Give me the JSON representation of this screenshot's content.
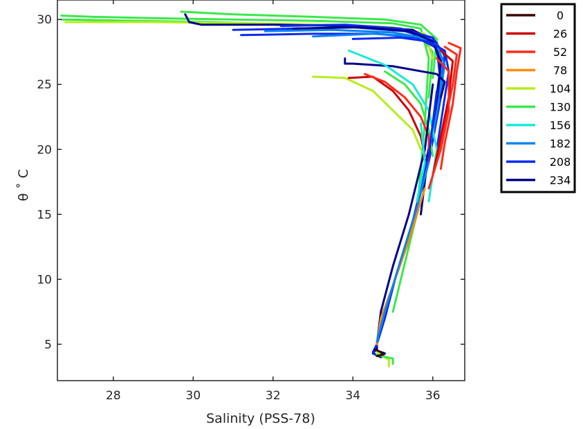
{
  "chart_data": {
    "type": "line",
    "xlabel": "Salinity (PSS-78)",
    "ylabel": "θ ˚ C",
    "xlim": [
      26.6,
      36.8
    ],
    "ylim": [
      2.2,
      31.5
    ],
    "xticks": [
      28,
      30,
      32,
      34,
      36
    ],
    "yticks": [
      5,
      10,
      15,
      20,
      25,
      30
    ],
    "grid": false,
    "legend_placement": "outside-top-right",
    "legend": [
      {
        "label": "0",
        "color": "#3a0000"
      },
      {
        "label": "26",
        "color": "#cc0000"
      },
      {
        "label": "52",
        "color": "#ff2a1a"
      },
      {
        "label": "78",
        "color": "#ff8a00"
      },
      {
        "label": "104",
        "color": "#b5ee1a"
      },
      {
        "label": "130",
        "color": "#3ae84a"
      },
      {
        "label": "156",
        "color": "#1ae8d8"
      },
      {
        "label": "182",
        "color": "#0a84ee"
      },
      {
        "label": "208",
        "color": "#0a2af0"
      },
      {
        "label": "234",
        "color": "#00008c"
      }
    ],
    "series": [
      {
        "legend_index": 5,
        "x": [
          26.7,
          27.5,
          29.0,
          31.0,
          33.0,
          35.0,
          35.7,
          35.9,
          35.8,
          35.6,
          35.0
        ],
        "y": [
          30.3,
          30.2,
          30.1,
          30.0,
          29.9,
          29.7,
          29.3,
          27.0,
          22.0,
          15.0,
          7.5
        ]
      },
      {
        "legend_index": 5,
        "x": [
          26.7,
          28.5,
          30.5,
          32.5,
          34.5,
          35.6,
          36.0,
          35.9
        ],
        "y": [
          30.0,
          29.9,
          29.8,
          29.6,
          29.4,
          29.0,
          27.5,
          24.0
        ]
      },
      {
        "legend_index": 4,
        "x": [
          26.8,
          29.0,
          31.5,
          33.5,
          35.0,
          35.8,
          36.0
        ],
        "y": [
          29.8,
          29.8,
          29.7,
          29.6,
          29.4,
          28.9,
          27.0
        ]
      },
      {
        "legend_index": 5,
        "x": [
          29.7,
          31.0,
          33.0,
          34.8,
          35.7,
          36.1,
          36.0
        ],
        "y": [
          30.6,
          30.4,
          30.2,
          30.0,
          29.6,
          28.5,
          25.5
        ]
      },
      {
        "legend_index": 9,
        "x": [
          29.8,
          29.9,
          30.2,
          32.0,
          34.0,
          35.5,
          36.1,
          36.2,
          35.9,
          35.7
        ],
        "y": [
          30.4,
          29.8,
          29.6,
          29.6,
          29.5,
          29.2,
          28.2,
          25.5,
          20.0,
          15.0
        ]
      },
      {
        "legend_index": 8,
        "x": [
          31.0,
          32.5,
          34.0,
          35.3,
          36.0,
          36.2,
          36.0
        ],
        "y": [
          29.2,
          29.3,
          29.4,
          29.1,
          28.4,
          26.5,
          22.0
        ]
      },
      {
        "legend_index": 8,
        "x": [
          31.2,
          33.0,
          34.6,
          35.6,
          36.1,
          36.2
        ],
        "y": [
          28.8,
          28.9,
          28.9,
          28.6,
          27.8,
          25.0
        ]
      },
      {
        "legend_index": 7,
        "x": [
          31.8,
          33.5,
          35.0,
          35.9,
          36.3,
          36.1
        ],
        "y": [
          29.1,
          29.2,
          29.0,
          28.5,
          27.5,
          23.0
        ]
      },
      {
        "legend_index": 8,
        "x": [
          32.2,
          33.8,
          35.2,
          36.0,
          36.3,
          36.2,
          35.9
        ],
        "y": [
          29.5,
          29.6,
          29.3,
          28.6,
          27.2,
          24.0,
          19.0
        ]
      },
      {
        "legend_index": 9,
        "x": [
          32.5,
          34.2,
          35.4,
          36.0,
          36.2,
          36.1,
          35.8
        ],
        "y": [
          29.3,
          29.4,
          29.1,
          28.3,
          26.8,
          23.5,
          18.5
        ]
      },
      {
        "legend_index": 7,
        "x": [
          33.0,
          34.5,
          35.6,
          36.1,
          36.3,
          36.0
        ],
        "y": [
          28.7,
          28.9,
          28.7,
          28.0,
          26.5,
          21.0
        ]
      },
      {
        "legend_index": 8,
        "x": [
          34.0,
          35.2,
          35.9,
          36.3,
          36.4,
          36.1
        ],
        "y": [
          28.5,
          28.6,
          28.3,
          27.6,
          26.0,
          20.0
        ]
      },
      {
        "legend_index": 9,
        "x": [
          33.8,
          33.8,
          34.0,
          35.0,
          36.1,
          36.3,
          36.2
        ],
        "y": [
          27.0,
          26.6,
          26.6,
          26.4,
          25.8,
          25.2,
          24.0
        ]
      },
      {
        "legend_index": 6,
        "x": [
          33.9,
          34.8,
          35.5,
          35.9,
          36.1,
          35.9
        ],
        "y": [
          27.6,
          26.5,
          25.0,
          23.0,
          20.0,
          16.0
        ]
      },
      {
        "legend_index": 4,
        "x": [
          33.0,
          33.8,
          34.5,
          35.0,
          35.5,
          35.7
        ],
        "y": [
          25.6,
          25.5,
          24.5,
          23.0,
          21.5,
          20.0
        ]
      },
      {
        "legend_index": 5,
        "x": [
          34.8,
          35.3,
          35.7,
          35.9,
          36.0
        ],
        "y": [
          26.0,
          25.0,
          23.5,
          21.5,
          19.5
        ]
      },
      {
        "legend_index": 1,
        "x": [
          33.9,
          34.5,
          35.0,
          35.4,
          35.7,
          35.8
        ],
        "y": [
          25.5,
          25.6,
          24.5,
          23.0,
          21.0,
          19.5
        ]
      },
      {
        "legend_index": 2,
        "x": [
          34.3,
          34.8,
          35.3,
          35.7,
          35.9,
          35.9
        ],
        "y": [
          25.8,
          25.2,
          24.0,
          22.5,
          21.0,
          19.0
        ]
      },
      {
        "legend_index": 2,
        "x": [
          36.4,
          36.7,
          36.6,
          36.5,
          36.3,
          36.2
        ],
        "y": [
          28.2,
          27.8,
          26.0,
          23.5,
          20.5,
          18.5
        ]
      },
      {
        "legend_index": 2,
        "x": [
          36.3,
          36.6,
          36.5,
          36.3,
          36.1
        ],
        "y": [
          27.9,
          27.3,
          25.0,
          22.0,
          19.0
        ]
      },
      {
        "legend_index": 1,
        "x": [
          36.2,
          36.5,
          36.4,
          36.2,
          36.0
        ],
        "y": [
          27.6,
          26.8,
          24.0,
          21.0,
          18.0
        ]
      },
      {
        "legend_index": 2,
        "x": [
          36.1,
          36.4,
          36.4,
          36.2,
          35.9
        ],
        "y": [
          27.0,
          26.0,
          23.0,
          20.0,
          17.0
        ]
      },
      {
        "legend_index": 9,
        "x": [
          36.0,
          35.8,
          35.4,
          35.0,
          34.7,
          34.6,
          34.6,
          34.8,
          34.7,
          34.5,
          34.6
        ],
        "y": [
          25.0,
          20.0,
          15.0,
          11.0,
          7.5,
          5.0,
          4.5,
          4.3,
          4.0,
          4.3,
          4.7
        ]
      },
      {
        "legend_index": 8,
        "x": [
          36.1,
          35.9,
          35.5,
          35.1,
          34.8,
          34.6,
          34.5,
          34.6
        ],
        "y": [
          24.5,
          19.5,
          14.5,
          10.5,
          7.0,
          5.0,
          4.4,
          4.1
        ]
      },
      {
        "legend_index": 3,
        "x": [
          35.8,
          35.4,
          35.0,
          34.7,
          34.6
        ],
        "y": [
          17.0,
          13.0,
          9.5,
          7.0,
          5.0
        ]
      },
      {
        "legend_index": 4,
        "x": [
          34.6,
          34.8,
          34.9,
          34.9
        ],
        "y": [
          4.4,
          4.0,
          3.8,
          3.3
        ]
      },
      {
        "legend_index": 5,
        "x": [
          34.6,
          34.7,
          35.0,
          35.0
        ],
        "y": [
          4.2,
          4.1,
          3.9,
          3.5
        ]
      },
      {
        "legend_index": 0,
        "x": [
          34.55,
          34.7,
          34.75,
          34.6
        ],
        "y": [
          4.6,
          4.4,
          4.2,
          4.1
        ]
      },
      {
        "legend_index": 7,
        "x": [
          35.9,
          35.6,
          35.2,
          34.8,
          34.6
        ],
        "y": [
          19.0,
          15.5,
          11.5,
          7.5,
          5.2
        ]
      },
      {
        "legend_index": 6,
        "x": [
          35.7,
          35.8,
          35.6
        ],
        "y": [
          22.0,
          19.0,
          16.0
        ]
      }
    ]
  }
}
